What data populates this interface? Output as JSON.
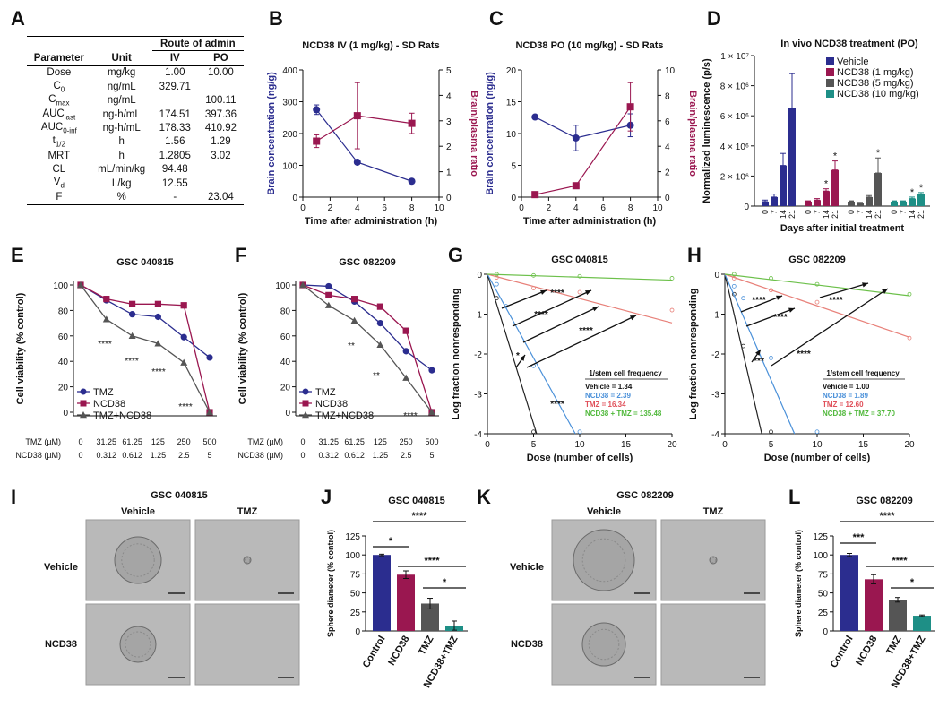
{
  "figure": {
    "panel_labels": [
      "A",
      "B",
      "C",
      "D",
      "E",
      "F",
      "G",
      "H",
      "I",
      "J",
      "K",
      "L"
    ],
    "A": {
      "route_header": "Route of admin",
      "col_headers": [
        "Parameter",
        "Unit",
        "IV",
        "PO"
      ],
      "rows": [
        [
          "Dose",
          "mg/kg",
          "1.00",
          "10.00"
        ],
        [
          "C0",
          "ng/mL",
          "329.71",
          ""
        ],
        [
          "Cmax",
          "ng/mL",
          "",
          "100.11"
        ],
        [
          "AUClast",
          "ng-h/mL",
          "174.51",
          "397.36"
        ],
        [
          "AUC0-inf",
          "ng-h/mL",
          "178.33",
          "410.92"
        ],
        [
          "t1/2",
          "h",
          "1.56",
          "1.29"
        ],
        [
          "MRT",
          "h",
          "1.2805",
          "3.02"
        ],
        [
          "CL",
          "mL/min/kg",
          "94.48",
          ""
        ],
        [
          "Vd",
          "L/kg",
          "12.55",
          ""
        ],
        [
          "F",
          "%",
          "-",
          "23.04"
        ]
      ]
    },
    "B": {
      "title": "NCD38 IV (1 mg/kg) - SD Rats",
      "ylabel": "Brain concentration (ng/g)",
      "y2label": "Brain/plasma ratio",
      "xlabel": "Time after administration (h)"
    },
    "C": {
      "title": "NCD38 PO (10 mg/kg) - SD Rats",
      "ylabel": "Brain concentration (ng/g)",
      "y2label": "Brain/plasma ratio",
      "xlabel": "Time after administration (h)"
    },
    "D": {
      "title": "In vivo NCD38 treatment (PO)",
      "ylabel": "Normalized luminescence (p/s)",
      "xlabel": "Days after initial treatment",
      "legend": [
        "Vehicle",
        "NCD38 (1 mg/kg)",
        "NCD38 (5 mg/kg)",
        "NCD38 (10 mg/kg)"
      ]
    },
    "E": {
      "title": "GSC 040815",
      "ylabel": "Cell viability (% control)",
      "legend": [
        "TMZ",
        "NCD38",
        "TMZ+NCD38"
      ],
      "row1_label": "TMZ (µM)",
      "row2_label": "NCD38 (µM)",
      "tmz": [
        "0",
        "31.25",
        "61.25",
        "125",
        "250",
        "500"
      ],
      "ncd": [
        "0",
        "0.312",
        "0.612",
        "1.25",
        "2.5",
        "5"
      ],
      "stars": [
        "****",
        "****",
        "****",
        "****"
      ]
    },
    "F": {
      "title": "GSC 082209",
      "ylabel": "Cell viability (% control)",
      "legend": [
        "TMZ",
        "NCD38",
        "TMZ+NCD38"
      ],
      "row1_label": "TMZ (µM)",
      "row2_label": "NCD38 (µM)",
      "tmz": [
        "0",
        "31.25",
        "61.25",
        "125",
        "250",
        "500"
      ],
      "ncd": [
        "0",
        "0.312",
        "0.612",
        "1.25",
        "2.5",
        "5"
      ],
      "stars": [
        "**",
        "**",
        "****"
      ]
    },
    "G": {
      "title": "GSC 040815",
      "ylabel": "Log fraction nonresponding",
      "xlabel": "Dose (number of cells)",
      "freq_title": "1/stem cell frequency",
      "freq": [
        "Vehicle = 1.34",
        "NCD38 = 2.39",
        "TMZ = 16.34",
        "NCD38 + TMZ = 135.48"
      ],
      "stars": [
        "****",
        "****",
        "****",
        "****",
        "*"
      ]
    },
    "H": {
      "title": "GSC 082209",
      "ylabel": "Log fraction nonresponding",
      "xlabel": "Dose (number of cells)",
      "freq_title": "1/stem cell frequency",
      "freq": [
        "Vehicle = 1.00",
        "NCD38 = 1.89",
        "TMZ = 12.60",
        "NCD38 + TMZ = 37.70"
      ],
      "stars": [
        "****",
        "****",
        "****",
        "****",
        "***"
      ]
    },
    "I": {
      "title": "GSC 040815",
      "cols": [
        "Vehicle",
        "TMZ"
      ],
      "rows": [
        "Vehicle",
        "NCD38"
      ]
    },
    "J": {
      "title": "GSC 040815",
      "ylabel": "Sphere diameter (% control)",
      "sig": [
        "****",
        "*",
        "****",
        "*"
      ]
    },
    "K": {
      "title": "GSC 082209",
      "cols": [
        "Vehicle",
        "TMZ"
      ],
      "rows": [
        "Vehicle",
        "NCD38"
      ]
    },
    "L": {
      "title": "GSC 082209",
      "ylabel": "Sphere diameter (% control)",
      "sig": [
        "****",
        "***",
        "****",
        "*"
      ]
    }
  },
  "chart_data": [
    {
      "id": "B",
      "type": "line",
      "x": [
        1,
        4,
        8
      ],
      "series": [
        {
          "name": "Brain concentration (ng/g)",
          "axis": "left",
          "values": [
            275,
            110,
            50
          ],
          "err": [
            15,
            4,
            3
          ]
        },
        {
          "name": "Brain/plasma ratio",
          "axis": "right",
          "values": [
            2.2,
            3.2,
            2.9
          ],
          "err": [
            0.25,
            1.3,
            0.4
          ]
        }
      ],
      "xlim": [
        0,
        10
      ],
      "ylim": [
        0,
        400
      ],
      "y2lim": [
        0,
        5
      ],
      "xticks": [
        0,
        2,
        4,
        6,
        8,
        10
      ],
      "yticks": [
        0,
        100,
        200,
        300,
        400
      ],
      "y2ticks": [
        0,
        1,
        2,
        3,
        4,
        5
      ]
    },
    {
      "id": "C",
      "type": "line",
      "x": [
        1,
        4,
        8
      ],
      "series": [
        {
          "name": "Brain concentration (ng/g)",
          "axis": "left",
          "values": [
            12.6,
            9.3,
            11.3
          ],
          "err": [
            0.2,
            2,
            1.8
          ]
        },
        {
          "name": "Brain/plasma ratio",
          "axis": "right",
          "values": [
            0.2,
            0.9,
            7.1
          ],
          "err": [
            0.1,
            0.2,
            1.9
          ]
        }
      ],
      "xlim": [
        0,
        10
      ],
      "ylim": [
        0,
        20
      ],
      "y2lim": [
        0,
        10
      ],
      "xticks": [
        0,
        2,
        4,
        6,
        8,
        10
      ],
      "yticks": [
        0,
        5,
        10,
        15,
        20
      ],
      "y2ticks": [
        0,
        2,
        4,
        6,
        8,
        10
      ]
    },
    {
      "id": "D",
      "type": "bar",
      "categories": [
        "0",
        "7",
        "14",
        "21"
      ],
      "series": [
        {
          "name": "Vehicle",
          "values": [
            0.3,
            0.6,
            2.7,
            6.5
          ],
          "err": [
            0.1,
            0.2,
            0.8,
            2.3
          ]
        },
        {
          "name": "NCD38 (1 mg/kg)",
          "values": [
            0.3,
            0.4,
            1.0,
            2.4
          ],
          "err": [
            0.05,
            0.1,
            0.15,
            0.6
          ]
        },
        {
          "name": "NCD38 (5 mg/kg)",
          "values": [
            0.3,
            0.2,
            0.6,
            2.2
          ],
          "err": [
            0.05,
            0.05,
            0.1,
            1.0
          ]
        },
        {
          "name": "NCD38 (10 mg/kg)",
          "values": [
            0.3,
            0.3,
            0.5,
            0.8
          ],
          "err": [
            0.05,
            0.05,
            0.1,
            0.1
          ]
        }
      ],
      "ylim": [
        0,
        10000000
      ],
      "yticks": [
        "0",
        "2 × 10⁶",
        "4 × 10⁶",
        "6 × 10⁶",
        "8 × 10⁶",
        "1 × 10⁷"
      ],
      "stars": [
        "*",
        "*",
        "*",
        "*",
        "*"
      ]
    },
    {
      "id": "E",
      "type": "line",
      "x": [
        "0",
        "31.25",
        "61.25",
        "125",
        "250",
        "500"
      ],
      "ylim": [
        0,
        100
      ],
      "yticks": [
        0,
        20,
        40,
        60,
        80,
        100
      ],
      "series": [
        {
          "name": "TMZ",
          "values": [
            100,
            88,
            77,
            75,
            59,
            43
          ]
        },
        {
          "name": "NCD38",
          "values": [
            100,
            89,
            85,
            85,
            84,
            0
          ]
        },
        {
          "name": "TMZ+NCD38",
          "values": [
            100,
            73,
            60,
            54,
            39,
            0
          ]
        }
      ]
    },
    {
      "id": "F",
      "type": "line",
      "x": [
        "0",
        "31.25",
        "61.25",
        "125",
        "250",
        "500"
      ],
      "ylim": [
        0,
        100
      ],
      "yticks": [
        0,
        20,
        40,
        60,
        80,
        100
      ],
      "series": [
        {
          "name": "TMZ",
          "values": [
            100,
            99,
            87,
            70,
            48,
            33
          ]
        },
        {
          "name": "NCD38",
          "values": [
            100,
            92,
            89,
            83,
            64,
            0
          ]
        },
        {
          "name": "TMZ+NCD38",
          "values": [
            100,
            84,
            72,
            53,
            27,
            0
          ]
        }
      ]
    },
    {
      "id": "G",
      "type": "scatter",
      "xlim": [
        0,
        20
      ],
      "ylim": [
        -4,
        0
      ],
      "xticks": [
        0,
        5,
        10,
        15,
        20
      ],
      "yticks": [
        0,
        -1,
        -2,
        -3,
        -4
      ],
      "series": [
        {
          "name": "Vehicle",
          "slope": -0.75,
          "points": [
            [
              1,
              -0.6
            ],
            [
              5,
              -4
            ]
          ]
        },
        {
          "name": "NCD38",
          "slope": -0.42,
          "points": [
            [
              1,
              -0.25
            ],
            [
              2,
              -0.8
            ],
            [
              5,
              -2.3
            ],
            [
              10,
              -4
            ]
          ]
        },
        {
          "name": "TMZ",
          "slope": -0.061,
          "points": [
            [
              1,
              -0.08
            ],
            [
              5,
              -0.35
            ],
            [
              10,
              -0.45
            ],
            [
              20,
              -0.9
            ]
          ]
        },
        {
          "name": "NCD38 + TMZ",
          "slope": -0.0074,
          "points": [
            [
              1,
              0
            ],
            [
              5,
              -0.03
            ],
            [
              10,
              -0.05
            ],
            [
              20,
              -0.1
            ]
          ]
        }
      ]
    },
    {
      "id": "H",
      "type": "scatter",
      "xlim": [
        0,
        20
      ],
      "ylim": [
        -4,
        0
      ],
      "xticks": [
        0,
        5,
        10,
        15,
        20
      ],
      "yticks": [
        0,
        -1,
        -2,
        -3,
        -4
      ],
      "series": [
        {
          "name": "Vehicle",
          "slope": -1.0,
          "points": [
            [
              1,
              -0.5
            ],
            [
              2,
              -1.8
            ],
            [
              5,
              -4
            ]
          ]
        },
        {
          "name": "NCD38",
          "slope": -0.53,
          "points": [
            [
              1,
              -0.3
            ],
            [
              2,
              -0.6
            ],
            [
              5,
              -2.1
            ],
            [
              10,
              -4
            ]
          ]
        },
        {
          "name": "TMZ",
          "slope": -0.079,
          "points": [
            [
              1,
              -0.1
            ],
            [
              5,
              -0.4
            ],
            [
              10,
              -0.7
            ],
            [
              20,
              -1.6
            ]
          ]
        },
        {
          "name": "NCD38 + TMZ",
          "slope": -0.027,
          "points": [
            [
              1,
              0
            ],
            [
              5,
              -0.1
            ],
            [
              10,
              -0.25
            ],
            [
              20,
              -0.5
            ]
          ]
        }
      ]
    },
    {
      "id": "J",
      "type": "bar",
      "categories": [
        "Control",
        "NCD38",
        "TMZ",
        "NCD38+TMZ"
      ],
      "values": [
        100,
        74,
        36,
        7
      ],
      "err": [
        1,
        5,
        7,
        6
      ],
      "ylim": [
        0,
        125
      ],
      "yticks": [
        0,
        25,
        50,
        75,
        100,
        125
      ]
    },
    {
      "id": "L",
      "type": "bar",
      "categories": [
        "Control",
        "NCD38",
        "TMZ",
        "NCD38+TMZ"
      ],
      "values": [
        100,
        68,
        41,
        20
      ],
      "err": [
        2,
        6,
        3,
        1
      ],
      "ylim": [
        0,
        125
      ],
      "yticks": [
        0,
        25,
        50,
        75,
        100,
        125
      ]
    }
  ]
}
